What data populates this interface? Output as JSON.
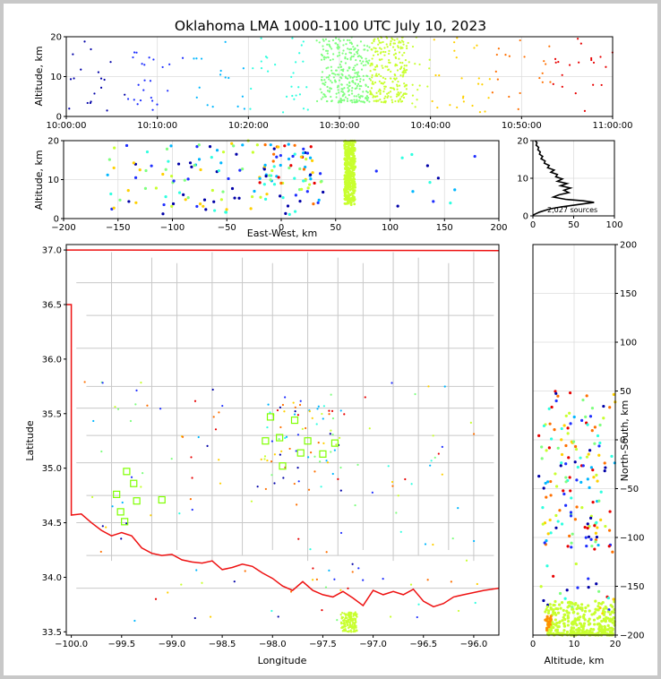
{
  "title": "Oklahoma LMA 1000-1100 UTC July 10, 2023",
  "source_count": "2,027 sources",
  "colors": {
    "sequence": [
      "#0000a8",
      "#1f2fff",
      "#00b7ff",
      "#2fffe0",
      "#7fff7f",
      "#c8ff2f",
      "#ffd000",
      "#ff7000",
      "#e80000"
    ],
    "state_line": "#ee1111",
    "county": "#c8c8c8",
    "station": "#7fff00"
  },
  "chart_data": [
    {
      "id": "time-height",
      "type": "scatter",
      "ylabel": "Altitude, km",
      "xlim": [
        "10:00:00",
        "11:00:00"
      ],
      "ylim": [
        0,
        20
      ],
      "xticks": [
        "10:00:00",
        "10:10:00",
        "10:20:00",
        "10:30:00",
        "10:40:00",
        "10:50:00",
        "11:00:00"
      ],
      "yticks": [
        "0",
        "10",
        "20"
      ],
      "grid": true
    },
    {
      "id": "ew-altitude",
      "type": "scatter",
      "xlabel": "East-West, km",
      "ylabel": "Altitude, km",
      "xlim": [
        -200,
        200
      ],
      "ylim": [
        0,
        20
      ],
      "xticks": [
        "−200",
        "−150",
        "−100",
        "−50",
        "0",
        "50",
        "100",
        "150",
        "200"
      ],
      "yticks": [
        "0",
        "10",
        "20"
      ],
      "grid": true
    },
    {
      "id": "alt-histogram",
      "type": "line",
      "xlim": [
        0,
        100
      ],
      "ylim": [
        0,
        20
      ],
      "xticks": [
        "0",
        "50",
        "100"
      ],
      "yticks": [
        "0",
        "10",
        "20"
      ],
      "profile": [
        [
          0,
          0.2
        ],
        [
          2,
          0.4
        ],
        [
          8,
          1.0
        ],
        [
          20,
          1.8
        ],
        [
          35,
          2.4
        ],
        [
          55,
          3.0
        ],
        [
          75,
          3.6
        ],
        [
          62,
          4.0
        ],
        [
          40,
          4.4
        ],
        [
          25,
          5.0
        ],
        [
          32,
          5.6
        ],
        [
          44,
          6.2
        ],
        [
          38,
          6.8
        ],
        [
          46,
          7.4
        ],
        [
          34,
          8.0
        ],
        [
          42,
          8.6
        ],
        [
          30,
          9.2
        ],
        [
          36,
          9.8
        ],
        [
          28,
          10.4
        ],
        [
          30,
          11.0
        ],
        [
          22,
          11.6
        ],
        [
          26,
          12.2
        ],
        [
          18,
          12.8
        ],
        [
          20,
          13.4
        ],
        [
          14,
          14.0
        ],
        [
          15,
          14.6
        ],
        [
          10,
          15.2
        ],
        [
          12,
          15.8
        ],
        [
          8,
          16.4
        ],
        [
          9,
          17.0
        ],
        [
          6,
          17.6
        ],
        [
          7,
          18.2
        ],
        [
          4,
          18.8
        ],
        [
          5,
          19.4
        ],
        [
          3,
          20.0
        ]
      ]
    },
    {
      "id": "plan-view",
      "type": "scatter",
      "xlabel": "Longitude",
      "ylabel": "Latitude",
      "xlim": [
        -100.05,
        -95.75
      ],
      "ylim": [
        33.47,
        37.05
      ],
      "xticks": [
        "−100.0",
        "−99.5",
        "−99.0",
        "−98.5",
        "−98.0",
        "−97.5",
        "−97.0",
        "−96.5",
        "−96.0"
      ],
      "yticks": [
        "33.5",
        "34.0",
        "34.5",
        "35.0",
        "35.5",
        "36.0",
        "36.5",
        "37.0"
      ],
      "stations": [
        [
          -99.45,
          34.97
        ],
        [
          -99.38,
          34.86
        ],
        [
          -99.55,
          34.76
        ],
        [
          -99.35,
          34.7
        ],
        [
          -99.51,
          34.6
        ],
        [
          -99.47,
          34.51
        ],
        [
          -99.1,
          34.71
        ],
        [
          -98.07,
          35.25
        ],
        [
          -98.02,
          35.47
        ],
        [
          -97.93,
          35.28
        ],
        [
          -97.9,
          35.02
        ],
        [
          -97.78,
          35.44
        ],
        [
          -97.72,
          35.14
        ],
        [
          -97.65,
          35.25
        ],
        [
          -97.5,
          35.13
        ],
        [
          -97.38,
          35.23
        ]
      ]
    },
    {
      "id": "ns-altitude",
      "type": "scatter",
      "xlabel": "Altitude, km",
      "ylabel": "North-South, km",
      "xlim": [
        0,
        20
      ],
      "ylim": [
        -200,
        200
      ],
      "xticks": [
        "0",
        "10",
        "20"
      ],
      "yticks": [
        "−200",
        "−150",
        "−100",
        "−50",
        "0",
        "50",
        "100",
        "150",
        "200"
      ],
      "grid": true
    }
  ]
}
